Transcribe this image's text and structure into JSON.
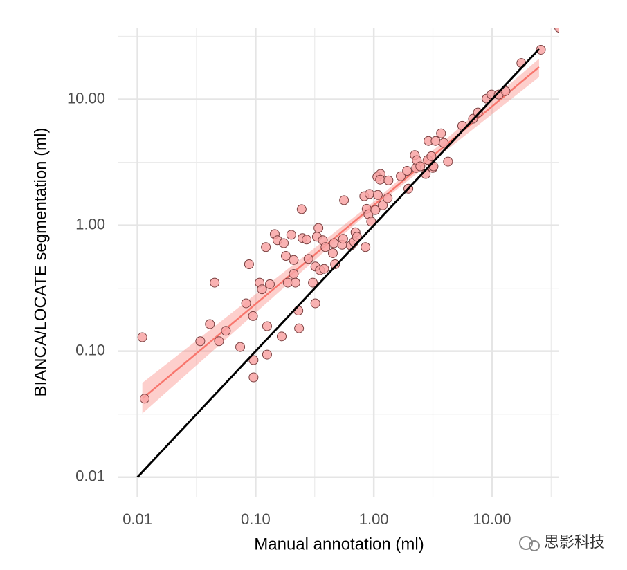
{
  "chart_data": {
    "type": "scatter",
    "x_label": "Manual annotation (ml)",
    "y_label": "BIANCA/LOCATE segmentation (ml)",
    "log_x": true,
    "log_y": true,
    "grid": true,
    "xlim": [
      0.0068,
      37
    ],
    "ylim": [
      0.007,
      37
    ],
    "xticks": [
      0.01,
      {
        "value": 0.1,
        "label": "0.10"
      },
      {
        "value": 1,
        "label": "1.00"
      },
      {
        "value": 10,
        "label": "10.00"
      }
    ],
    "yticks": [
      0.01,
      {
        "value": 0.1,
        "label": "0.10"
      },
      {
        "value": 1,
        "label": "1.00"
      },
      {
        "value": 10,
        "label": "10.00"
      }
    ],
    "x_minor_ticks": [
      0.0316,
      0.316,
      3.16,
      31.6
    ],
    "y_minor_ticks": [
      0.0316,
      0.316,
      3.16,
      31.6
    ],
    "point_color": "#f8a5a5",
    "point_edge_color": "#7a4040",
    "x": [
      0.011,
      0.0115,
      0.034,
      0.041,
      0.045,
      0.049,
      0.056,
      0.074,
      0.083,
      0.088,
      0.095,
      0.096,
      0.096,
      0.108,
      0.113,
      0.122,
      0.125,
      0.125,
      0.132,
      0.145,
      0.153,
      0.166,
      0.173,
      0.18,
      0.187,
      0.2,
      0.21,
      0.21,
      0.217,
      0.23,
      0.233,
      0.245,
      0.249,
      0.27,
      0.28,
      0.305,
      0.32,
      0.32,
      0.34,
      0.33,
      0.35,
      0.37,
      0.38,
      0.39,
      0.45,
      0.46,
      0.47,
      0.54,
      0.55,
      0.56,
      0.64,
      0.68,
      0.7,
      0.72,
      0.83,
      0.85,
      0.87,
      0.9,
      0.92,
      0.95,
      1.03,
      1.07,
      1.08,
      1.14,
      1.13,
      1.19,
      1.31,
      1.33,
      1.69,
      1.91,
      1.96,
      2.22,
      2.28,
      2.31,
      2.47,
      2.75,
      2.86,
      2.9,
      3.07,
      3.15,
      3.33,
      3.2,
      3.7,
      3.9,
      4.24,
      5.6,
      6.9,
      7.6,
      9.0,
      9.9,
      11.4,
      13.0,
      17.7,
      25.9,
      37
    ],
    "y": [
      0.129,
      0.042,
      0.12,
      0.164,
      0.35,
      0.12,
      0.145,
      0.108,
      0.24,
      0.49,
      0.19,
      0.085,
      0.062,
      0.35,
      0.31,
      0.67,
      0.158,
      0.094,
      0.34,
      0.85,
      0.76,
      0.131,
      0.72,
      0.57,
      0.35,
      0.84,
      0.41,
      0.53,
      0.35,
      0.21,
      0.152,
      1.34,
      0.79,
      0.77,
      0.54,
      0.35,
      0.47,
      0.24,
      0.95,
      0.81,
      0.44,
      0.76,
      0.45,
      0.67,
      0.6,
      0.72,
      0.49,
      0.7,
      0.78,
      1.58,
      0.69,
      0.74,
      0.88,
      0.81,
      1.7,
      0.67,
      1.35,
      1.22,
      1.77,
      1.07,
      1.32,
      2.42,
      1.74,
      2.55,
      2.3,
      1.44,
      1.64,
      2.27,
      2.45,
      2.7,
      1.95,
      3.6,
      2.85,
      3.28,
      2.93,
      2.55,
      3.3,
      4.67,
      3.53,
      2.85,
      4.67,
      2.93,
      5.36,
      4.5,
      3.2,
      6.15,
      7.0,
      7.85,
      10.1,
      10.9,
      10.9,
      11.6,
      19.4,
      24.7,
      37
    ],
    "fit": {
      "color": "#f8766d",
      "x": [
        0.011,
        25
      ],
      "y": [
        0.042,
        18
      ],
      "ci_x": [
        0.011,
        1,
        25
      ],
      "ci_lower": [
        0.032,
        1.38,
        15
      ],
      "ci_upper": [
        0.056,
        1.54,
        21
      ]
    },
    "reference_line": {
      "color": "#000000",
      "x": [
        0.01,
        25
      ],
      "y": [
        0.01,
        25
      ]
    },
    "watermark": "思影科技"
  }
}
